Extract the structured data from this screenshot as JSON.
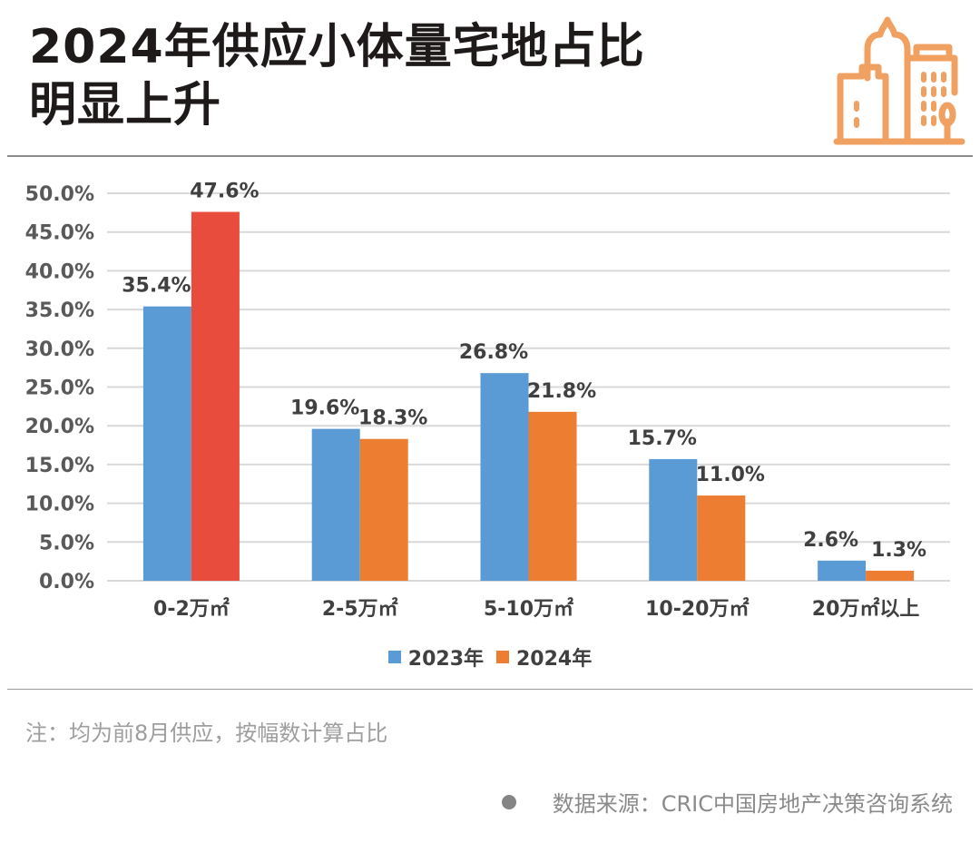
{
  "header": {
    "title_line1": "2024年供应小体量宅地占比",
    "title_line2": "明显上升",
    "logo_icon": "city-buildings-icon",
    "logo_color": "#F0A061"
  },
  "chart_data": {
    "type": "bar",
    "title": "2024年供应小体量宅地占比明显上升",
    "xlabel": "",
    "ylabel": "",
    "categories": [
      "0-2万㎡",
      "2-5万㎡",
      "5-10万㎡",
      "10-20万㎡",
      "20万㎡以上"
    ],
    "series": [
      {
        "name": "2023年",
        "color": "#5B9BD5",
        "values": [
          35.4,
          19.6,
          26.8,
          15.7,
          2.6
        ],
        "labels": [
          "35.4%",
          "19.6%",
          "26.8%",
          "15.7%",
          "2.6%"
        ]
      },
      {
        "name": "2024年",
        "color": "#ED7D31",
        "highlight_color": "#E84C3D",
        "highlight_index": 0,
        "values": [
          47.6,
          18.3,
          21.8,
          11.0,
          1.3
        ],
        "labels": [
          "47.6%",
          "18.3%",
          "21.8%",
          "11.0%",
          "1.3%"
        ]
      }
    ],
    "ylim": [
      0,
      50
    ],
    "yticks": [
      0,
      5,
      10,
      15,
      20,
      25,
      30,
      35,
      40,
      45,
      50
    ],
    "ytick_labels": [
      "0.0%",
      "5.0%",
      "10.0%",
      "15.0%",
      "20.0%",
      "25.0%",
      "30.0%",
      "35.0%",
      "40.0%",
      "45.0%",
      "50.0%"
    ],
    "grid": true,
    "legend_position": "bottom"
  },
  "legend": {
    "items": [
      {
        "label": "2023年",
        "color": "#5B9BD5"
      },
      {
        "label": "2024年",
        "color": "#ED7D31"
      }
    ]
  },
  "footer": {
    "note": "注：均为前8月供应，按幅数计算占比",
    "source": "数据来源：CRIC中国房地产决策咨询系统"
  }
}
